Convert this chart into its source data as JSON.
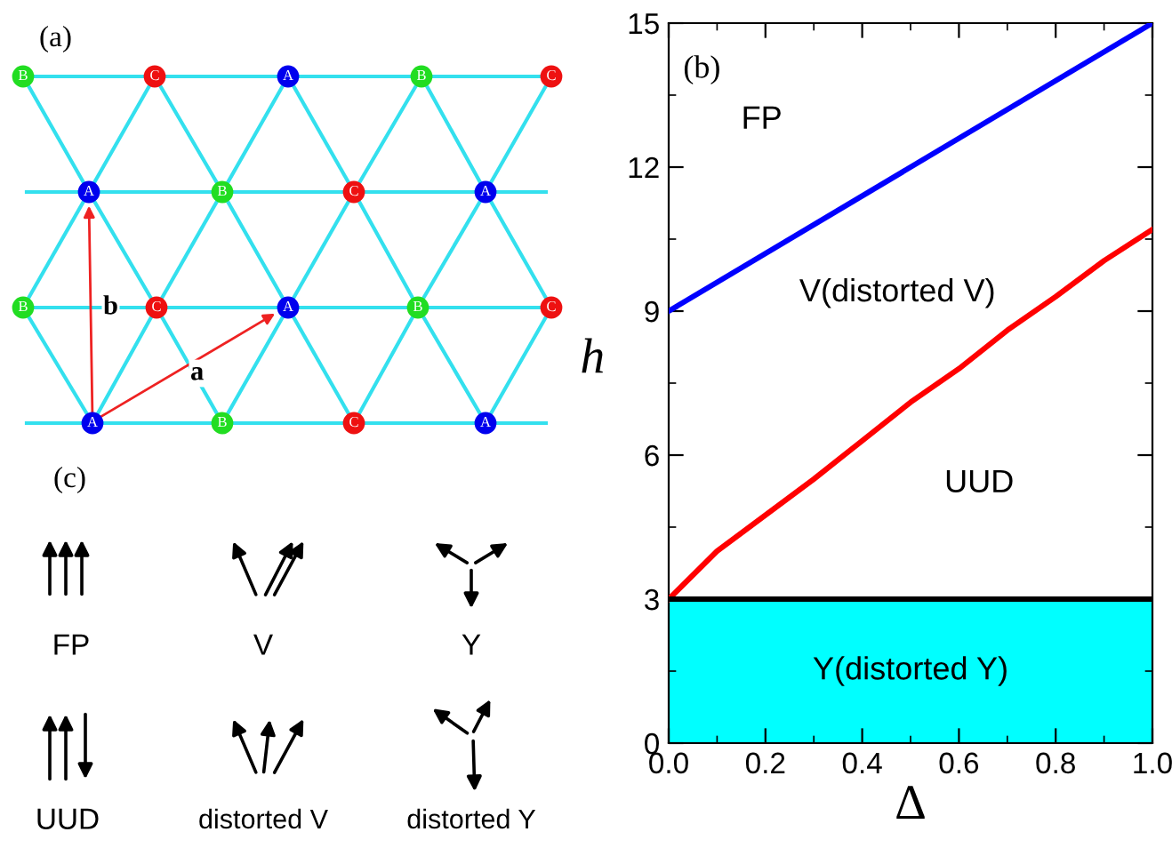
{
  "chart_data": [
    {
      "type": "other",
      "annotations": [
        "(a)",
        "B",
        "C",
        "A",
        "B",
        "C",
        "A",
        "B",
        "C",
        "A",
        "B",
        "C",
        "A",
        "B",
        "C",
        "A",
        "B",
        "C",
        "A",
        "b",
        "a",
        "(c)",
        "FP",
        "V",
        "Y",
        "UUD",
        "distorted V",
        "distorted Y"
      ]
    },
    {
      "type": "line",
      "xlabel": "Δ",
      "ylabel": "h",
      "xlim": [
        0,
        1
      ],
      "ylim": [
        0,
        15
      ],
      "xticks": [
        {
          "value": 0,
          "label": "0.0"
        },
        0.2,
        0.4,
        0.6,
        0.8,
        {
          "value": 1,
          "label": "1.0"
        }
      ],
      "yticks": [
        0,
        3,
        6,
        9,
        12,
        15
      ],
      "grid": false,
      "legend": false,
      "series": [
        {
          "color": "#0000ff",
          "x": [
            0,
            1
          ],
          "values": [
            9,
            15
          ]
        },
        {
          "color": "#ff0000",
          "x": [
            0,
            0.1,
            0.2,
            0.3,
            0.4,
            0.5,
            0.6,
            0.7,
            0.8,
            0.9,
            1.0
          ],
          "values": [
            3.0,
            4.0,
            4.75,
            5.5,
            6.3,
            7.1,
            7.8,
            8.6,
            9.3,
            10.05,
            10.7
          ]
        }
      ],
      "ref_lines": [
        {
          "axis": "y",
          "value": 3,
          "color": "#000000"
        }
      ],
      "bands": [
        {
          "axis": "y",
          "from": 0,
          "to": 3,
          "label": "Y(distorted Y)",
          "color": "#00ffff"
        }
      ],
      "annotations": [
        "(b)",
        "FP",
        "V(distorted V)",
        "UUD"
      ]
    }
  ]
}
